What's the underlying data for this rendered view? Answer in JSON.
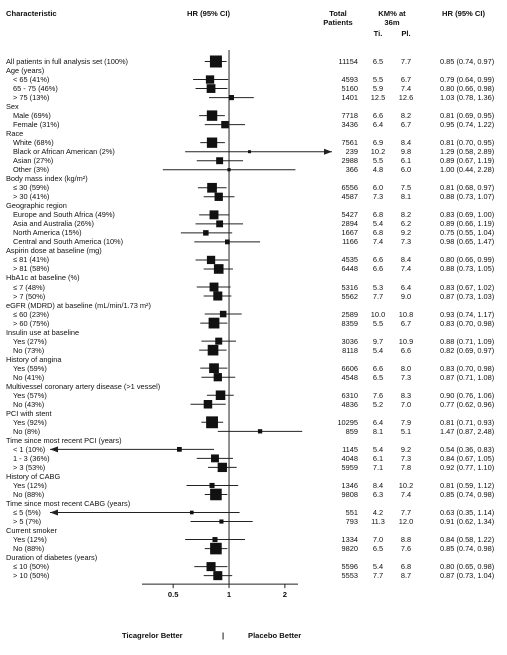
{
  "header": {
    "characteristic": "Characteristic",
    "hr_ci": "HR (95% CI)",
    "total_line1": "Total",
    "total_line2": "Patients",
    "km_line1": "KM% at",
    "km_line2": "36m",
    "ti": "Ti.",
    "pl": "Pl.",
    "hr_ci_right": "HR (95% CI)"
  },
  "footer": {
    "ticagrelor_better": "Ticagrelor Better",
    "placebo_better": "Placebo Better",
    "divider": "|"
  },
  "chart_data": {
    "type": "forest",
    "title": "",
    "x_scale": "log",
    "xlim": [
      0.3,
      2.8
    ],
    "xticks": [
      0.5,
      1,
      2
    ],
    "xtick_labels": [
      "0.5",
      "1",
      "2"
    ],
    "reference_line": 1,
    "rows": [
      {
        "kind": "item",
        "label": "All patients in full analysis set (100%)",
        "indent": 0,
        "hr": 0.85,
        "lo": 0.74,
        "hi": 0.97,
        "n": "11154",
        "ti": "6.5",
        "pl": "7.7",
        "ci_text": "0.85 (0.74, 0.97)"
      },
      {
        "kind": "group",
        "label": "Age (years)"
      },
      {
        "kind": "item",
        "label": "< 65 (41%)",
        "indent": 1,
        "hr": 0.79,
        "lo": 0.64,
        "hi": 0.99,
        "n": "4593",
        "ti": "5.5",
        "pl": "6.7",
        "ci_text": "0.79 (0.64, 0.99)"
      },
      {
        "kind": "item",
        "label": "65 - 75 (46%)",
        "indent": 1,
        "hr": 0.8,
        "lo": 0.66,
        "hi": 0.98,
        "n": "5160",
        "ti": "5.9",
        "pl": "7.4",
        "ci_text": "0.80 (0.66, 0.98)"
      },
      {
        "kind": "item",
        "label": "> 75 (13%)",
        "indent": 1,
        "hr": 1.03,
        "lo": 0.78,
        "hi": 1.36,
        "n": "1401",
        "ti": "12.5",
        "pl": "12.6",
        "ci_text": "1.03 (0.78, 1.36)"
      },
      {
        "kind": "group",
        "label": "Sex"
      },
      {
        "kind": "item",
        "label": "Male (69%)",
        "indent": 1,
        "hr": 0.81,
        "lo": 0.69,
        "hi": 0.95,
        "n": "7718",
        "ti": "6.6",
        "pl": "8.2",
        "ci_text": "0.81 (0.69, 0.95)"
      },
      {
        "kind": "item",
        "label": "Female (31%)",
        "indent": 1,
        "hr": 0.95,
        "lo": 0.74,
        "hi": 1.22,
        "n": "3436",
        "ti": "6.4",
        "pl": "6.7",
        "ci_text": "0.95 (0.74, 1.22)"
      },
      {
        "kind": "group",
        "label": "Race"
      },
      {
        "kind": "item",
        "label": "White (68%)",
        "indent": 1,
        "hr": 0.81,
        "lo": 0.7,
        "hi": 0.95,
        "n": "7561",
        "ti": "6.9",
        "pl": "8.4",
        "ci_text": "0.81 (0.70, 0.95)"
      },
      {
        "kind": "item",
        "label": "Black or African American (2%)",
        "indent": 1,
        "hr": 1.29,
        "lo": 0.58,
        "hi": 2.89,
        "n": "239",
        "ti": "10.2",
        "pl": "9.8",
        "ci_text": "1.29 (0.58, 2.89)",
        "arrow_right": true
      },
      {
        "kind": "item",
        "label": "Asian (27%)",
        "indent": 1,
        "hr": 0.89,
        "lo": 0.67,
        "hi": 1.19,
        "n": "2988",
        "ti": "5.5",
        "pl": "6.1",
        "ci_text": "0.89 (0.67, 1.19)"
      },
      {
        "kind": "item",
        "label": "Other (3%)",
        "indent": 1,
        "hr": 1.0,
        "lo": 0.44,
        "hi": 2.28,
        "n": "366",
        "ti": "4.8",
        "pl": "6.0",
        "ci_text": "1.00 (0.44, 2.28)"
      },
      {
        "kind": "group",
        "label": "Body mass index (kg/m²)"
      },
      {
        "kind": "item",
        "label": "≤ 30 (59%)",
        "indent": 1,
        "hr": 0.81,
        "lo": 0.68,
        "hi": 0.97,
        "n": "6556",
        "ti": "6.0",
        "pl": "7.5",
        "ci_text": "0.81 (0.68, 0.97)"
      },
      {
        "kind": "item",
        "label": "> 30 (41%)",
        "indent": 1,
        "hr": 0.88,
        "lo": 0.73,
        "hi": 1.07,
        "n": "4587",
        "ti": "7.3",
        "pl": "8.1",
        "ci_text": "0.88 (0.73, 1.07)"
      },
      {
        "kind": "group",
        "label": "Geographic region"
      },
      {
        "kind": "item",
        "label": "Europe and South Africa (49%)",
        "indent": 1,
        "hr": 0.83,
        "lo": 0.69,
        "hi": 1.0,
        "n": "5427",
        "ti": "6.8",
        "pl": "8.2",
        "ci_text": "0.83 (0.69, 1.00)"
      },
      {
        "kind": "item",
        "label": "Asia and Australia (26%)",
        "indent": 1,
        "hr": 0.89,
        "lo": 0.66,
        "hi": 1.19,
        "n": "2894",
        "ti": "5.4",
        "pl": "6.2",
        "ci_text": "0.89 (0.66, 1.19)"
      },
      {
        "kind": "item",
        "label": "North America (15%)",
        "indent": 1,
        "hr": 0.75,
        "lo": 0.55,
        "hi": 1.04,
        "n": "1667",
        "ti": "6.8",
        "pl": "9.2",
        "ci_text": "0.75 (0.55, 1.04)"
      },
      {
        "kind": "item",
        "label": "Central and South America (10%)",
        "indent": 1,
        "hr": 0.98,
        "lo": 0.65,
        "hi": 1.47,
        "n": "1166",
        "ti": "7.4",
        "pl": "7.3",
        "ci_text": "0.98 (0.65, 1.47)"
      },
      {
        "kind": "group",
        "label": "Aspirin dose at baseline (mg)"
      },
      {
        "kind": "item",
        "label": "≤ 81 (41%)",
        "indent": 1,
        "hr": 0.8,
        "lo": 0.66,
        "hi": 0.99,
        "n": "4535",
        "ti": "6.6",
        "pl": "8.4",
        "ci_text": "0.80 (0.66, 0.99)"
      },
      {
        "kind": "item",
        "label": "> 81 (58%)",
        "indent": 1,
        "hr": 0.88,
        "lo": 0.73,
        "hi": 1.05,
        "n": "6448",
        "ti": "6.6",
        "pl": "7.4",
        "ci_text": "0.88 (0.73, 1.05)"
      },
      {
        "kind": "group",
        "label": "HbA1c at baseline (%)"
      },
      {
        "kind": "item",
        "label": "≤ 7 (48%)",
        "indent": 1,
        "hr": 0.83,
        "lo": 0.67,
        "hi": 1.02,
        "n": "5316",
        "ti": "5.3",
        "pl": "6.4",
        "ci_text": "0.83 (0.67, 1.02)"
      },
      {
        "kind": "item",
        "label": "> 7 (50%)",
        "indent": 1,
        "hr": 0.87,
        "lo": 0.73,
        "hi": 1.03,
        "n": "5562",
        "ti": "7.7",
        "pl": "9.0",
        "ci_text": "0.87 (0.73, 1.03)"
      },
      {
        "kind": "group",
        "label": "eGFR (MDRD) at baseline (mL/min/1.73 m²)"
      },
      {
        "kind": "item",
        "label": "≤ 60 (23%)",
        "indent": 1,
        "hr": 0.93,
        "lo": 0.74,
        "hi": 1.17,
        "n": "2589",
        "ti": "10.0",
        "pl": "10.8",
        "ci_text": "0.93 (0.74, 1.17)"
      },
      {
        "kind": "item",
        "label": "> 60 (75%)",
        "indent": 1,
        "hr": 0.83,
        "lo": 0.7,
        "hi": 0.98,
        "n": "8359",
        "ti": "5.5",
        "pl": "6.7",
        "ci_text": "0.83 (0.70, 0.98)"
      },
      {
        "kind": "group",
        "label": "Insulin use at baseline"
      },
      {
        "kind": "item",
        "label": "Yes (27%)",
        "indent": 1,
        "hr": 0.88,
        "lo": 0.71,
        "hi": 1.09,
        "n": "3036",
        "ti": "9.7",
        "pl": "10.9",
        "ci_text": "0.88 (0.71, 1.09)"
      },
      {
        "kind": "item",
        "label": "No (73%)",
        "indent": 1,
        "hr": 0.82,
        "lo": 0.69,
        "hi": 0.97,
        "n": "8118",
        "ti": "5.4",
        "pl": "6.6",
        "ci_text": "0.82 (0.69, 0.97)"
      },
      {
        "kind": "group",
        "label": "History of angina"
      },
      {
        "kind": "item",
        "label": "Yes (59%)",
        "indent": 1,
        "hr": 0.83,
        "lo": 0.7,
        "hi": 0.98,
        "n": "6606",
        "ti": "6.6",
        "pl": "8.0",
        "ci_text": "0.83 (0.70, 0.98)"
      },
      {
        "kind": "item",
        "label": "No (41%)",
        "indent": 1,
        "hr": 0.87,
        "lo": 0.71,
        "hi": 1.08,
        "n": "4548",
        "ti": "6.5",
        "pl": "7.3",
        "ci_text": "0.87 (0.71, 1.08)"
      },
      {
        "kind": "group",
        "label": "Multivessel coronary artery disease (>1 vessel)"
      },
      {
        "kind": "item",
        "label": "Yes (57%)",
        "indent": 1,
        "hr": 0.9,
        "lo": 0.76,
        "hi": 1.06,
        "n": "6310",
        "ti": "7.6",
        "pl": "8.3",
        "ci_text": "0.90 (0.76, 1.06)"
      },
      {
        "kind": "item",
        "label": "No (43%)",
        "indent": 1,
        "hr": 0.77,
        "lo": 0.62,
        "hi": 0.96,
        "n": "4836",
        "ti": "5.2",
        "pl": "7.0",
        "ci_text": "0.77 (0.62, 0.96)"
      },
      {
        "kind": "group",
        "label": "PCI with stent"
      },
      {
        "kind": "item",
        "label": "Yes (92%)",
        "indent": 1,
        "hr": 0.81,
        "lo": 0.71,
        "hi": 0.93,
        "n": "10295",
        "ti": "6.4",
        "pl": "7.9",
        "ci_text": "0.81 (0.71, 0.93)"
      },
      {
        "kind": "item",
        "label": "No (8%)",
        "indent": 1,
        "hr": 1.47,
        "lo": 0.87,
        "hi": 2.48,
        "n": "859",
        "ti": "8.1",
        "pl": "5.1",
        "ci_text": "1.47 (0.87, 2.48)"
      },
      {
        "kind": "group",
        "label": "Time since most recent PCI (years)"
      },
      {
        "kind": "item",
        "label": "< 1 (10%)",
        "indent": 1,
        "hr": 0.54,
        "lo": 0.36,
        "hi": 0.83,
        "n": "1145",
        "ti": "5.4",
        "pl": "9.2",
        "ci_text": "0.54 (0.36, 0.83)",
        "arrow_left": true
      },
      {
        "kind": "item",
        "label": "1 - 3 (36%)",
        "indent": 1,
        "hr": 0.84,
        "lo": 0.67,
        "hi": 1.05,
        "n": "4048",
        "ti": "6.1",
        "pl": "7.3",
        "ci_text": "0.84 (0.67, 1.05)"
      },
      {
        "kind": "item",
        "label": "> 3 (53%)",
        "indent": 1,
        "hr": 0.92,
        "lo": 0.77,
        "hi": 1.1,
        "n": "5959",
        "ti": "7.1",
        "pl": "7.8",
        "ci_text": "0.92 (0.77, 1.10)"
      },
      {
        "kind": "group",
        "label": "History of CABG"
      },
      {
        "kind": "item",
        "label": "Yes (12%)",
        "indent": 1,
        "hr": 0.81,
        "lo": 0.59,
        "hi": 1.12,
        "n": "1346",
        "ti": "8.4",
        "pl": "10.2",
        "ci_text": "0.81 (0.59, 1.12)"
      },
      {
        "kind": "item",
        "label": "No (88%)",
        "indent": 1,
        "hr": 0.85,
        "lo": 0.74,
        "hi": 0.98,
        "n": "9808",
        "ti": "6.3",
        "pl": "7.4",
        "ci_text": "0.85 (0.74, 0.98)"
      },
      {
        "kind": "group",
        "label": "Time since most recent CABG (years)"
      },
      {
        "kind": "item",
        "label": "≤ 5 (5%)",
        "indent": 1,
        "hr": 0.63,
        "lo": 0.35,
        "hi": 1.14,
        "n": "551",
        "ti": "4.2",
        "pl": "7.7",
        "ci_text": "0.63 (0.35, 1.14)",
        "arrow_left": true
      },
      {
        "kind": "item",
        "label": "> 5 (7%)",
        "indent": 1,
        "hr": 0.91,
        "lo": 0.62,
        "hi": 1.34,
        "n": "793",
        "ti": "11.3",
        "pl": "12.0",
        "ci_text": "0.91 (0.62, 1.34)"
      },
      {
        "kind": "group",
        "label": "Current smoker"
      },
      {
        "kind": "item",
        "label": "Yes (12%)",
        "indent": 1,
        "hr": 0.84,
        "lo": 0.58,
        "hi": 1.22,
        "n": "1334",
        "ti": "7.0",
        "pl": "8.8",
        "ci_text": "0.84 (0.58, 1.22)"
      },
      {
        "kind": "item",
        "label": "No (88%)",
        "indent": 1,
        "hr": 0.85,
        "lo": 0.74,
        "hi": 0.98,
        "n": "9820",
        "ti": "6.5",
        "pl": "7.6",
        "ci_text": "0.85 (0.74, 0.98)"
      },
      {
        "kind": "group",
        "label": "Duration of diabetes (years)"
      },
      {
        "kind": "item",
        "label": "≤ 10 (50%)",
        "indent": 1,
        "hr": 0.8,
        "lo": 0.65,
        "hi": 0.98,
        "n": "5596",
        "ti": "5.4",
        "pl": "6.8",
        "ci_text": "0.80 (0.65, 0.98)"
      },
      {
        "kind": "item",
        "label": "> 10 (50%)",
        "indent": 1,
        "hr": 0.87,
        "lo": 0.73,
        "hi": 1.04,
        "n": "5553",
        "ti": "7.7",
        "pl": "8.7",
        "ci_text": "0.87 (0.73, 1.04)"
      }
    ]
  }
}
